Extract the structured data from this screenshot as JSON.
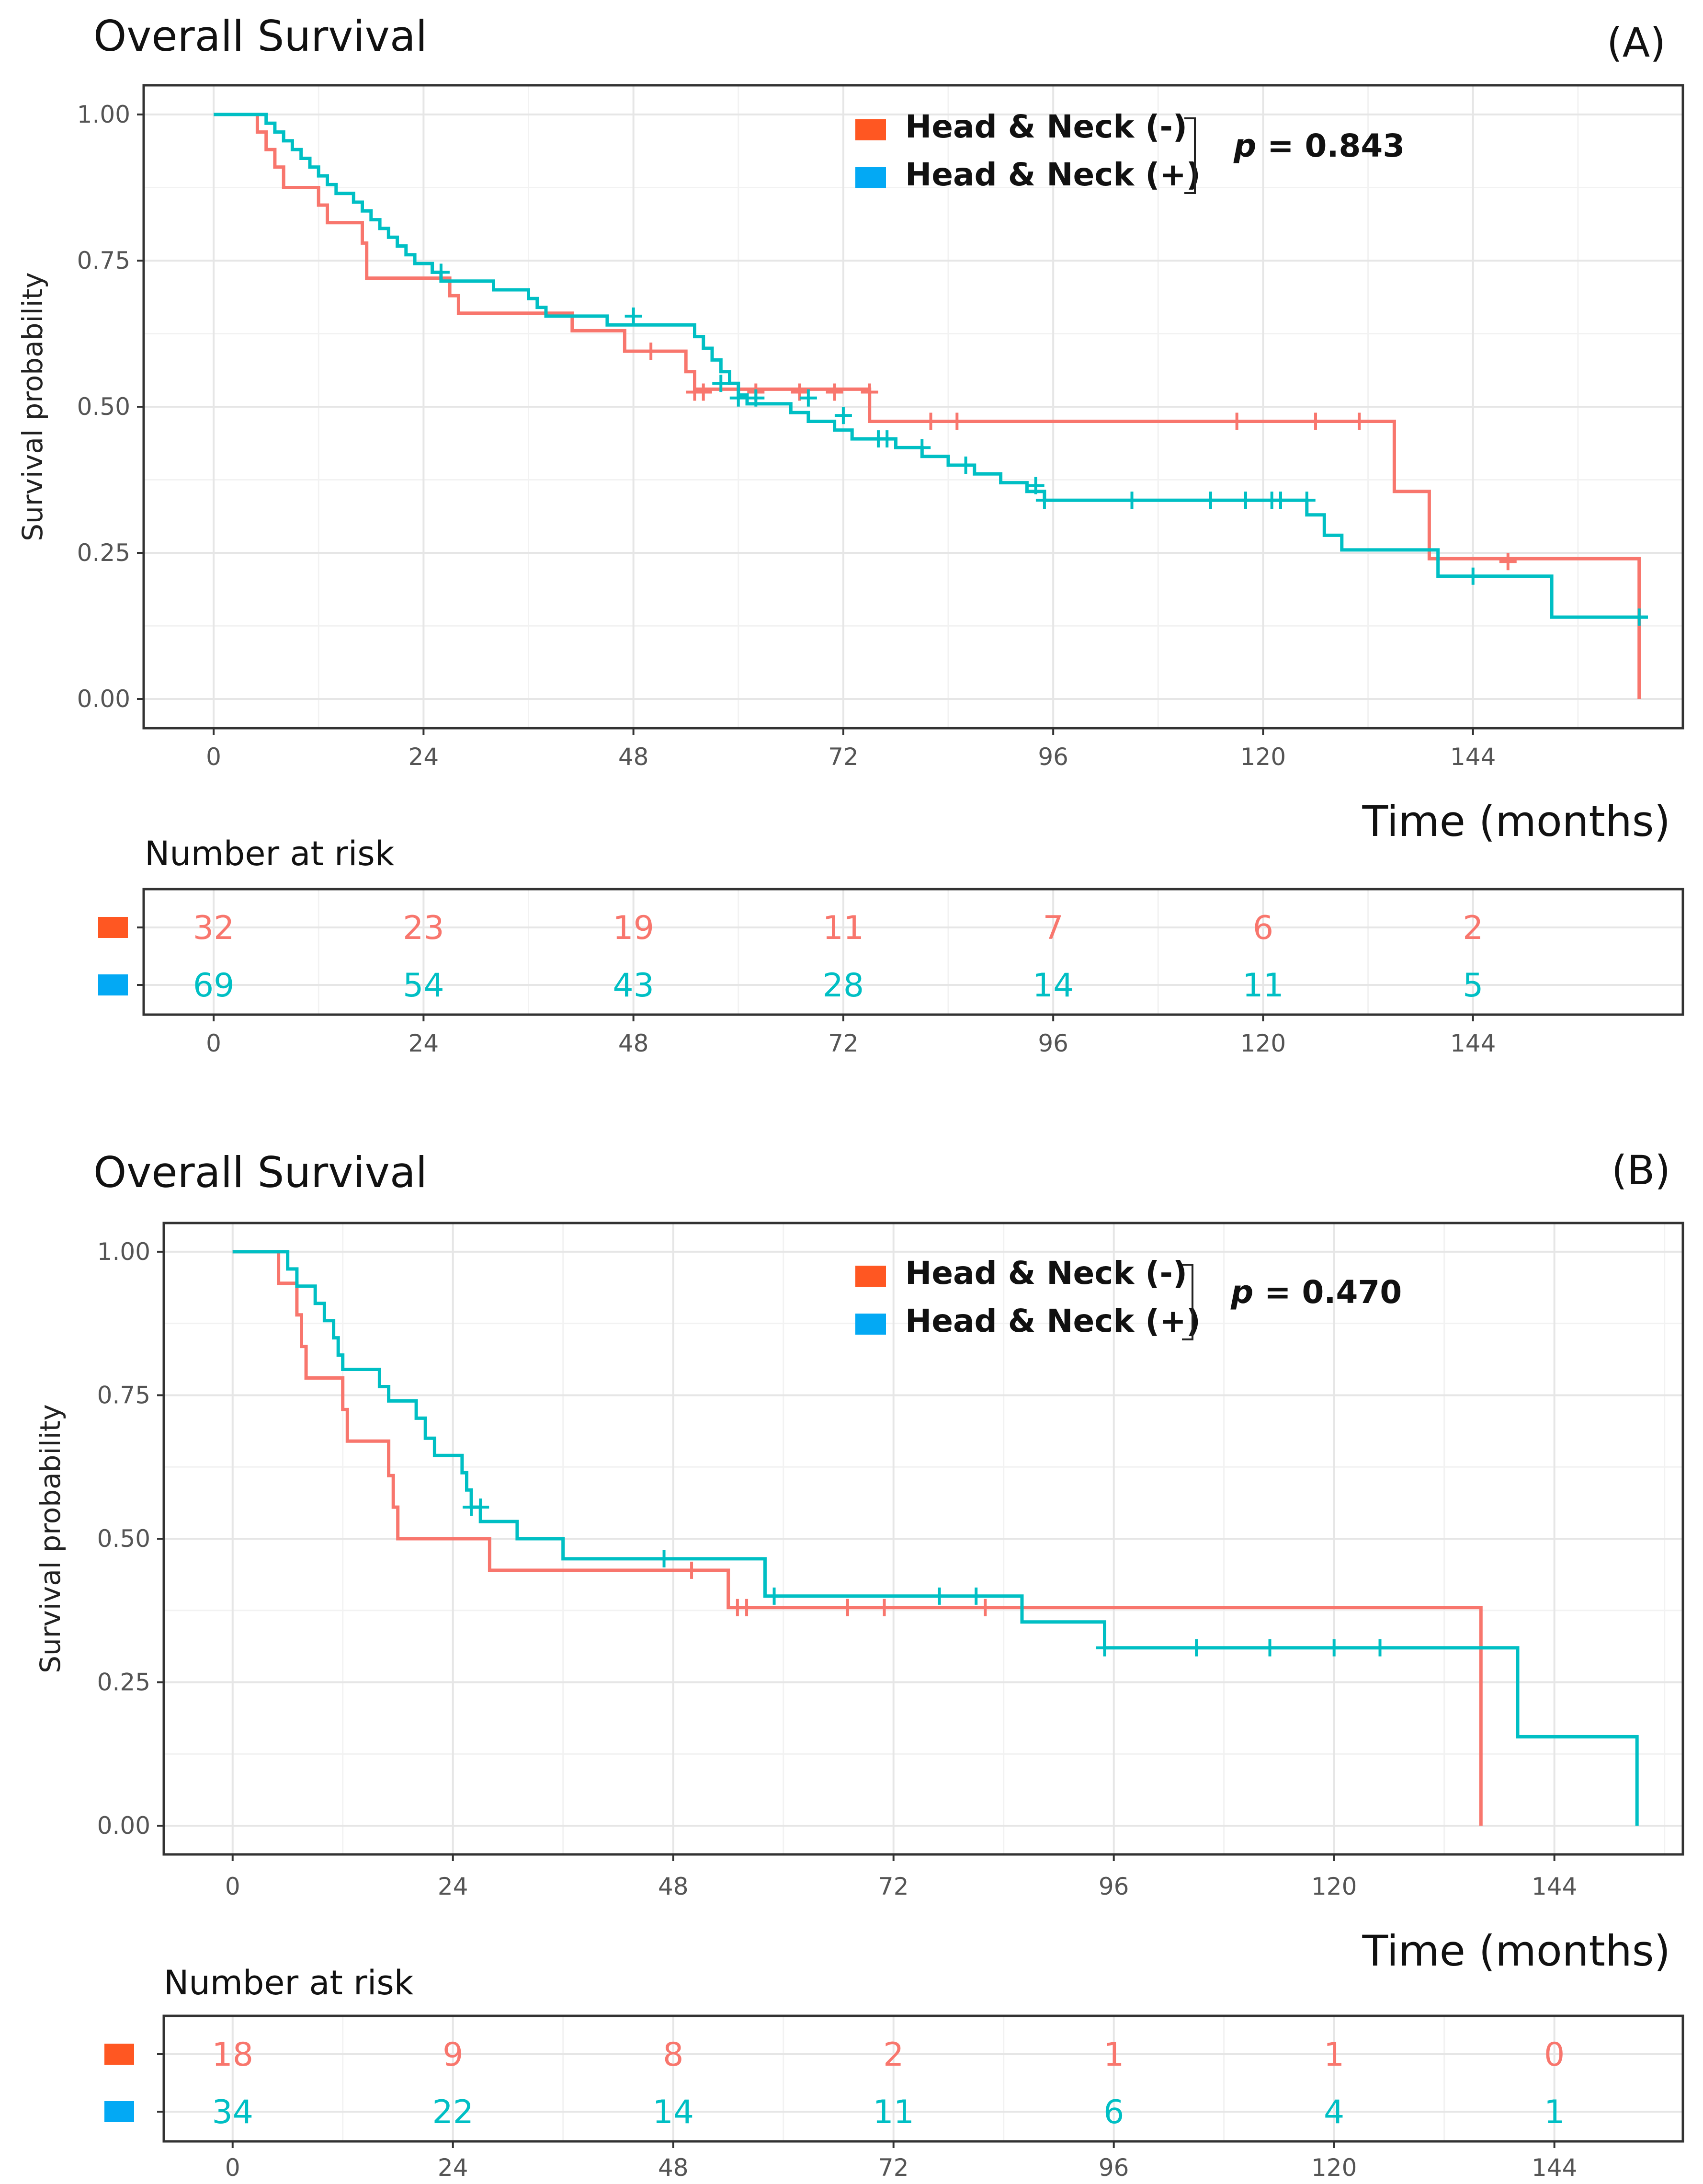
{
  "colors": {
    "neg": "#F8766D",
    "pos": "#00BFC4",
    "neg_legend": "#FF5722",
    "pos_legend": "#03A9F4",
    "grid_major": "#E6E6E6",
    "grid_minor": "#F2F2F2",
    "panel_border": "#333333"
  },
  "chart_data": [
    {
      "type": "line",
      "subtype": "kaplan-meier",
      "panel_label": "(A)",
      "title": "Overall Survival",
      "xlabel": "Time (months)",
      "ylabel": "Survival probability",
      "xlim": [
        -8,
        168
      ],
      "ylim": [
        -0.05,
        1.05
      ],
      "x_ticks": [
        0,
        24,
        48,
        72,
        96,
        120,
        144
      ],
      "y_ticks": [
        0,
        0.25,
        0.5,
        0.75,
        1.0
      ],
      "y_tick_labels": [
        "0.00",
        "0.25",
        "0.50",
        "0.75",
        "1.00"
      ],
      "grid": true,
      "legend_position": "top-center",
      "p_value_label": "p",
      "p_value_text": " = 0.843",
      "series": [
        {
          "name": "Head & Neck (-)",
          "color_key": "neg",
          "steps": [
            [
              0,
              1.0
            ],
            [
              5,
              0.97
            ],
            [
              6,
              0.94
            ],
            [
              7,
              0.91
            ],
            [
              8,
              0.875
            ],
            [
              12,
              0.845
            ],
            [
              13,
              0.815
            ],
            [
              17,
              0.78
            ],
            [
              17.5,
              0.72
            ],
            [
              27,
              0.69
            ],
            [
              28,
              0.66
            ],
            [
              41,
              0.63
            ],
            [
              47,
              0.595
            ],
            [
              54,
              0.56
            ],
            [
              55,
              0.53
            ],
            [
              160,
              0.24
            ],
            [
              163,
              0.0
            ]
          ],
          "step_points": [
            [
              0,
              1.0
            ],
            [
              5,
              0.97
            ],
            [
              6,
              0.94
            ],
            [
              7,
              0.91
            ],
            [
              8,
              0.875
            ],
            [
              12,
              0.845
            ],
            [
              13,
              0.815
            ],
            [
              17,
              0.78
            ],
            [
              17.5,
              0.72
            ],
            [
              27,
              0.69
            ],
            [
              28,
              0.66
            ],
            [
              41,
              0.63
            ],
            [
              47,
              0.595
            ],
            [
              54,
              0.56
            ],
            [
              55,
              0.53
            ],
            [
              75,
              0.475
            ],
            [
              135,
              0.355
            ],
            [
              139,
              0.24
            ],
            [
              163,
              0.0
            ]
          ],
          "censor_times": [
            [
              50,
              0.595
            ],
            [
              55,
              0.525
            ],
            [
              56,
              0.525
            ],
            [
              62,
              0.525
            ],
            [
              67,
              0.525
            ],
            [
              71,
              0.525
            ],
            [
              75,
              0.525
            ],
            [
              82,
              0.475
            ],
            [
              85,
              0.475
            ],
            [
              117,
              0.475
            ],
            [
              126,
              0.475
            ],
            [
              131,
              0.475
            ],
            [
              148,
              0.235
            ]
          ]
        },
        {
          "name": "Head & Neck (+)",
          "color_key": "pos",
          "step_points": [
            [
              0,
              1.0
            ],
            [
              6,
              0.985
            ],
            [
              7,
              0.97
            ],
            [
              8,
              0.955
            ],
            [
              9,
              0.94
            ],
            [
              10,
              0.925
            ],
            [
              11,
              0.91
            ],
            [
              12,
              0.895
            ],
            [
              13,
              0.88
            ],
            [
              14,
              0.865
            ],
            [
              16,
              0.85
            ],
            [
              17,
              0.835
            ],
            [
              18,
              0.82
            ],
            [
              19,
              0.805
            ],
            [
              20,
              0.79
            ],
            [
              21,
              0.775
            ],
            [
              22,
              0.76
            ],
            [
              23,
              0.745
            ],
            [
              25,
              0.73
            ],
            [
              26,
              0.715
            ],
            [
              32,
              0.7
            ],
            [
              36,
              0.685
            ],
            [
              37,
              0.67
            ],
            [
              38,
              0.655
            ],
            [
              45,
              0.64
            ],
            [
              55,
              0.62
            ],
            [
              56,
              0.6
            ],
            [
              57,
              0.58
            ],
            [
              58,
              0.56
            ],
            [
              59,
              0.54
            ],
            [
              60,
              0.52
            ],
            [
              61,
              0.505
            ],
            [
              66,
              0.49
            ],
            [
              68,
              0.475
            ],
            [
              71,
              0.46
            ],
            [
              73,
              0.445
            ],
            [
              78,
              0.43
            ],
            [
              81,
              0.415
            ],
            [
              84,
              0.4
            ],
            [
              87,
              0.385
            ],
            [
              90,
              0.37
            ],
            [
              93,
              0.355
            ],
            [
              95,
              0.34
            ],
            [
              125,
              0.315
            ],
            [
              127,
              0.28
            ],
            [
              129,
              0.255
            ],
            [
              140,
              0.21
            ],
            [
              153,
              0.14
            ]
          ],
          "censor_times": [
            [
              26,
              0.73
            ],
            [
              48,
              0.655
            ],
            [
              58,
              0.54
            ],
            [
              60,
              0.515
            ],
            [
              62,
              0.515
            ],
            [
              68,
              0.515
            ],
            [
              72,
              0.485
            ],
            [
              76,
              0.445
            ],
            [
              77,
              0.445
            ],
            [
              81,
              0.43
            ],
            [
              86,
              0.4
            ],
            [
              94,
              0.365
            ],
            [
              95,
              0.34
            ],
            [
              105,
              0.34
            ],
            [
              114,
              0.34
            ],
            [
              118,
              0.34
            ],
            [
              121,
              0.34
            ],
            [
              122,
              0.34
            ],
            [
              125,
              0.34
            ],
            [
              144,
              0.21
            ],
            [
              163,
              0.14
            ]
          ],
          "end_time": 164
        }
      ],
      "risk_table": {
        "title": "Number at risk",
        "times": [
          0,
          24,
          48,
          72,
          96,
          120,
          144
        ],
        "rows": [
          {
            "name": "Head & Neck (-)",
            "color_key": "neg",
            "values": [
              32,
              23,
              19,
              11,
              7,
              6,
              2
            ]
          },
          {
            "name": "Head & Neck (+)",
            "color_key": "pos",
            "values": [
              69,
              54,
              43,
              28,
              14,
              11,
              5
            ]
          }
        ]
      }
    },
    {
      "type": "line",
      "subtype": "kaplan-meier",
      "panel_label": "(B)",
      "title": "Overall Survival",
      "xlabel": "Time (months)",
      "ylabel": "Survival probability",
      "xlim": [
        -7.5,
        158
      ],
      "ylim": [
        -0.05,
        1.05
      ],
      "x_ticks": [
        0,
        24,
        48,
        72,
        96,
        120,
        144
      ],
      "y_ticks": [
        0,
        0.25,
        0.5,
        0.75,
        1.0
      ],
      "y_tick_labels": [
        "0.00",
        "0.25",
        "0.50",
        "0.75",
        "1.00"
      ],
      "grid": true,
      "legend_position": "top-center",
      "p_value_label": "p",
      "p_value_text": " = 0.470",
      "series": [
        {
          "name": "Head & Neck (-)",
          "color_key": "neg",
          "step_points": [
            [
              0,
              1.0
            ],
            [
              5,
              0.945
            ],
            [
              7,
              0.89
            ],
            [
              7.5,
              0.835
            ],
            [
              8,
              0.78
            ],
            [
              12,
              0.725
            ],
            [
              12.5,
              0.67
            ],
            [
              17,
              0.61
            ],
            [
              17.5,
              0.555
            ],
            [
              18,
              0.5
            ],
            [
              28,
              0.445
            ],
            [
              54,
              0.38
            ],
            [
              136,
              0.0
            ]
          ],
          "censor_times": [
            [
              50,
              0.445
            ],
            [
              55,
              0.38
            ],
            [
              56,
              0.38
            ],
            [
              67,
              0.38
            ],
            [
              71,
              0.38
            ],
            [
              82,
              0.38
            ]
          ]
        },
        {
          "name": "Head & Neck (+)",
          "color_key": "pos",
          "step_points": [
            [
              0,
              1.0
            ],
            [
              6,
              0.97
            ],
            [
              7,
              0.94
            ],
            [
              9,
              0.91
            ],
            [
              10,
              0.88
            ],
            [
              11,
              0.85
            ],
            [
              11.5,
              0.82
            ],
            [
              12,
              0.795
            ],
            [
              16,
              0.765
            ],
            [
              17,
              0.74
            ],
            [
              20,
              0.71
            ],
            [
              21,
              0.675
            ],
            [
              22,
              0.645
            ],
            [
              25,
              0.615
            ],
            [
              25.5,
              0.585
            ],
            [
              26,
              0.555
            ],
            [
              27,
              0.53
            ],
            [
              31,
              0.5
            ],
            [
              36,
              0.465
            ],
            [
              58,
              0.4
            ],
            [
              86,
              0.355
            ],
            [
              95,
              0.31
            ],
            [
              140,
              0.155
            ],
            [
              153,
              0.0
            ]
          ],
          "censor_times": [
            [
              26,
              0.555
            ],
            [
              27,
              0.555
            ],
            [
              47,
              0.465
            ],
            [
              59,
              0.4
            ],
            [
              77,
              0.4
            ],
            [
              81,
              0.4
            ],
            [
              95,
              0.31
            ],
            [
              105,
              0.31
            ],
            [
              113,
              0.31
            ],
            [
              120,
              0.31
            ],
            [
              125,
              0.31
            ]
          ]
        }
      ],
      "risk_table": {
        "title": "Number at risk",
        "times": [
          0,
          24,
          48,
          72,
          96,
          120,
          144
        ],
        "rows": [
          {
            "name": "Head & Neck (-)",
            "color_key": "neg",
            "values": [
              18,
              9,
              8,
              2,
              1,
              1,
              0
            ]
          },
          {
            "name": "Head & Neck (+)",
            "color_key": "pos",
            "values": [
              34,
              22,
              14,
              11,
              6,
              4,
              1
            ]
          }
        ]
      }
    }
  ]
}
